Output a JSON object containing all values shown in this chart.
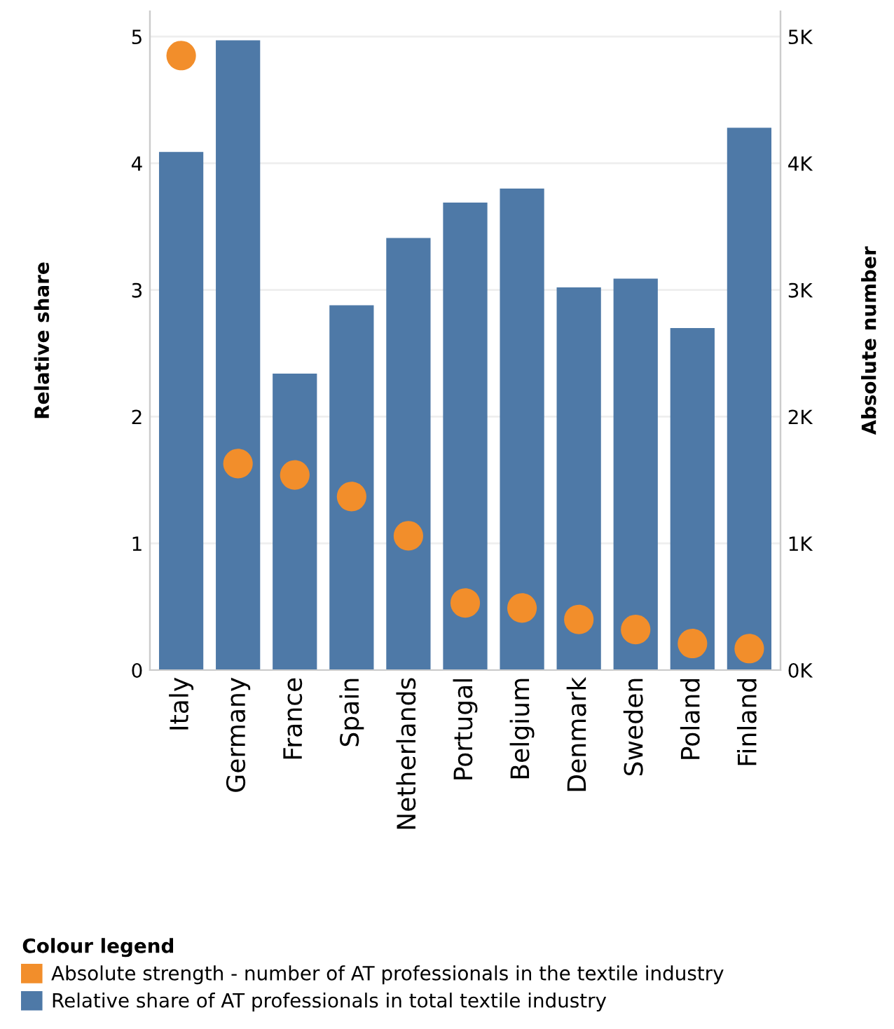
{
  "chart_data": {
    "type": "bar",
    "categories": [
      "Italy",
      "Germany",
      "France",
      "Spain",
      "Netherlands",
      "Portugal",
      "Belgium",
      "Denmark",
      "Sweden",
      "Poland",
      "Finland"
    ],
    "series": [
      {
        "name": "Relative share of AT professionals in total textile industry",
        "color": "#4e79a7",
        "values": [
          4.09,
          4.97,
          2.34,
          2.88,
          3.41,
          3.69,
          3.8,
          3.02,
          3.09,
          2.7,
          4.28
        ]
      },
      {
        "name": "Absolute strength - number of AT professionals in the textile industry",
        "type": "scatter",
        "axis": "y2",
        "color": "#f28e2b",
        "values": [
          4850,
          1630,
          1540,
          1370,
          1060,
          530,
          490,
          400,
          320,
          210,
          170
        ]
      }
    ],
    "ylabel": "Relative share",
    "y2label": "Absolute number",
    "ylim": [
      0,
      5.2
    ],
    "yticks": [
      0,
      1,
      2,
      3,
      4,
      5
    ],
    "y2lim": [
      0,
      5200
    ],
    "y2ticks": [
      {
        "value": 0,
        "label": "0K"
      },
      {
        "value": 1000,
        "label": "1K"
      },
      {
        "value": 2000,
        "label": "2K"
      },
      {
        "value": 3000,
        "label": "3K"
      },
      {
        "value": 4000,
        "label": "4K"
      },
      {
        "value": 5000,
        "label": "5K"
      }
    ],
    "grid": "y",
    "legend": "bottom",
    "legend_title": "Colour legend",
    "marker": "circle"
  }
}
